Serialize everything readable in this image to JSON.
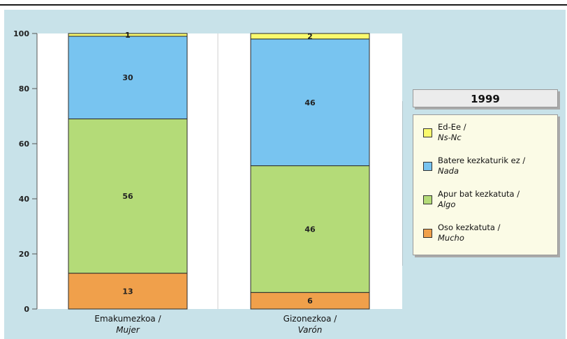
{
  "chart_data": {
    "type": "bar",
    "stacked": true,
    "categories": [
      {
        "line1": "Emakumezkoa /",
        "line2": "Mujer"
      },
      {
        "line1": "Gizonezkoa /",
        "line2": "Varón"
      }
    ],
    "series": [
      {
        "name": "Oso kezkatuta /",
        "name_es": "Mucho",
        "color": "#f0a04b",
        "values": [
          13,
          6
        ]
      },
      {
        "name": "Apur bat kezkatuta /",
        "name_es": "Algo",
        "color": "#b4db78",
        "values": [
          56,
          46
        ]
      },
      {
        "name": "Batere kezkaturik ez /",
        "name_es": "Nada",
        "color": "#78c4f0",
        "values": [
          30,
          46
        ]
      },
      {
        "name": "Ed-Ee /",
        "name_es": "Ns-Nc",
        "color": "#fafa6e",
        "values": [
          1,
          2
        ]
      }
    ],
    "ylim": [
      0,
      100
    ],
    "yticks": [
      0,
      20,
      40,
      60,
      80,
      100
    ],
    "grid": false,
    "legend": {
      "title": "1999",
      "position": "right"
    }
  }
}
